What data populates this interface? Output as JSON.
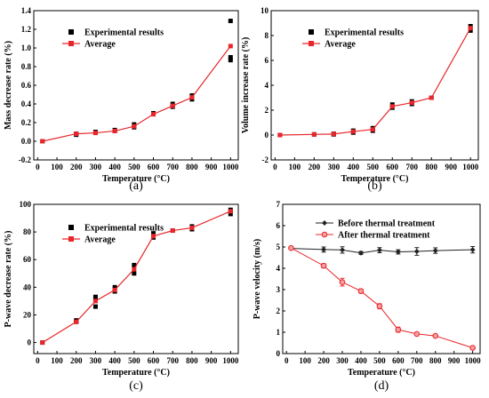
{
  "chart_data": [
    {
      "type": "scatter",
      "panel_label": "(a)",
      "xlabel": "Temperature (°C)",
      "ylabel": "Mass decrease rate (%)",
      "xlim": [
        -20,
        1040
      ],
      "ylim": [
        -0.2,
        1.4
      ],
      "xticks": [
        0,
        100,
        200,
        300,
        400,
        500,
        600,
        700,
        800,
        900,
        1000
      ],
      "yticks": [
        -0.2,
        0.0,
        0.2,
        0.4,
        0.6,
        0.8,
        1.0,
        1.2,
        1.4
      ],
      "ytick_labels": [
        "-0.2",
        "0.0",
        "0.2",
        "0.4",
        "0.6",
        "0.8",
        "1.0",
        "1.2",
        "1.4"
      ],
      "grid": false,
      "legend_position": "top-left",
      "series": [
        {
          "name": "Experimental results",
          "kind": "marker",
          "color": "#000000",
          "x": [
            25,
            200,
            200,
            300,
            300,
            400,
            400,
            500,
            500,
            600,
            600,
            700,
            700,
            800,
            800,
            1000,
            1000,
            1000
          ],
          "y": [
            0.0,
            0.07,
            0.08,
            0.09,
            0.1,
            0.11,
            0.12,
            0.15,
            0.18,
            0.29,
            0.3,
            0.37,
            0.4,
            0.45,
            0.49,
            0.87,
            0.9,
            1.29
          ]
        },
        {
          "name": "Average",
          "kind": "line",
          "color": "#e8262b",
          "x": [
            25,
            200,
            300,
            400,
            500,
            600,
            700,
            800,
            1000
          ],
          "y": [
            0.0,
            0.08,
            0.09,
            0.11,
            0.16,
            0.29,
            0.38,
            0.47,
            1.02
          ]
        }
      ]
    },
    {
      "type": "scatter",
      "panel_label": "(b)",
      "xlabel": "Temperature (°C)",
      "ylabel": "Volume increase rate (%)",
      "xlim": [
        -20,
        1040
      ],
      "ylim": [
        -2,
        10
      ],
      "xticks": [
        0,
        100,
        200,
        300,
        400,
        500,
        600,
        700,
        800,
        900,
        1000
      ],
      "yticks": [
        -2,
        0,
        2,
        4,
        6,
        8,
        10
      ],
      "ytick_labels": [
        "-2",
        "0",
        "2",
        "4",
        "6",
        "8",
        "10"
      ],
      "grid": false,
      "legend_position": "top-left",
      "series": [
        {
          "name": "Experimental results",
          "kind": "marker",
          "color": "#000000",
          "x": [
            25,
            200,
            300,
            300,
            400,
            400,
            500,
            500,
            600,
            600,
            700,
            700,
            800,
            1000,
            1000
          ],
          "y": [
            0.0,
            0.05,
            0.05,
            0.1,
            0.2,
            0.35,
            0.35,
            0.55,
            2.2,
            2.45,
            2.5,
            2.7,
            3.0,
            8.4,
            8.75
          ]
        },
        {
          "name": "Average",
          "kind": "line",
          "color": "#e8262b",
          "x": [
            25,
            200,
            300,
            400,
            500,
            600,
            700,
            800,
            1000
          ],
          "y": [
            0.0,
            0.05,
            0.08,
            0.28,
            0.45,
            2.3,
            2.6,
            3.0,
            8.6
          ]
        }
      ]
    },
    {
      "type": "scatter",
      "panel_label": "(c)",
      "xlabel": "Temperature (°C)",
      "ylabel": "P-wave decrease rate (%)",
      "xlim": [
        -20,
        1040
      ],
      "ylim": [
        -8,
        100
      ],
      "xticks": [
        0,
        100,
        200,
        300,
        400,
        500,
        600,
        700,
        800,
        900,
        1000
      ],
      "yticks": [
        0,
        20,
        40,
        60,
        80,
        100
      ],
      "ytick_labels": [
        "0",
        "20",
        "40",
        "60",
        "80",
        "100"
      ],
      "grid": false,
      "legend_position": "top-left",
      "series": [
        {
          "name": "Experimental results",
          "kind": "marker",
          "color": "#000000",
          "x": [
            25,
            200,
            200,
            300,
            300,
            300,
            400,
            400,
            500,
            500,
            600,
            600,
            700,
            800,
            800,
            1000,
            1000
          ],
          "y": [
            0,
            15,
            16,
            26,
            31,
            33,
            37,
            40,
            50,
            56,
            76,
            79,
            81,
            82,
            84,
            93,
            96
          ],
          "open_markers_x": [],
          "open_markers_y": []
        },
        {
          "name": "Average",
          "kind": "line",
          "color": "#e8262b",
          "x": [
            25,
            200,
            300,
            400,
            500,
            600,
            700,
            800,
            1000
          ],
          "y": [
            0,
            15,
            30,
            38,
            53,
            77,
            81,
            83,
            95
          ]
        }
      ]
    },
    {
      "type": "line",
      "panel_label": "(d)",
      "xlabel": "Temperature (°C)",
      "ylabel": "P-wave velocity (m/s)",
      "xlim": [
        -20,
        1040
      ],
      "ylim": [
        0,
        7
      ],
      "xticks": [
        0,
        100,
        200,
        300,
        400,
        500,
        600,
        700,
        800,
        900,
        1000
      ],
      "yticks": [
        0,
        1,
        2,
        3,
        4,
        5,
        6,
        7
      ],
      "ytick_labels": [
        "0",
        "1",
        "2",
        "3",
        "4",
        "5",
        "6",
        "7"
      ],
      "grid": false,
      "legend_position": "top-right",
      "series": [
        {
          "name": "Before thermal treatment",
          "kind": "line-marker",
          "color": "#222222",
          "x": [
            25,
            200,
            300,
            400,
            500,
            600,
            700,
            800,
            1000
          ],
          "y": [
            4.93,
            4.88,
            4.86,
            4.72,
            4.85,
            4.77,
            4.79,
            4.83,
            4.87
          ],
          "err": [
            0.05,
            0.12,
            0.15,
            0.07,
            0.12,
            0.1,
            0.18,
            0.13,
            0.15
          ]
        },
        {
          "name": "After  thermal treatment",
          "kind": "line-marker",
          "color": "#e8262b",
          "x": [
            25,
            200,
            300,
            400,
            500,
            600,
            700,
            800,
            1000
          ],
          "y": [
            4.95,
            4.12,
            3.35,
            2.93,
            2.22,
            1.12,
            0.92,
            0.83,
            0.27
          ],
          "err": [
            0.05,
            0.1,
            0.18,
            0.1,
            0.12,
            0.12,
            0.05,
            0.06,
            0.04
          ]
        }
      ]
    }
  ]
}
